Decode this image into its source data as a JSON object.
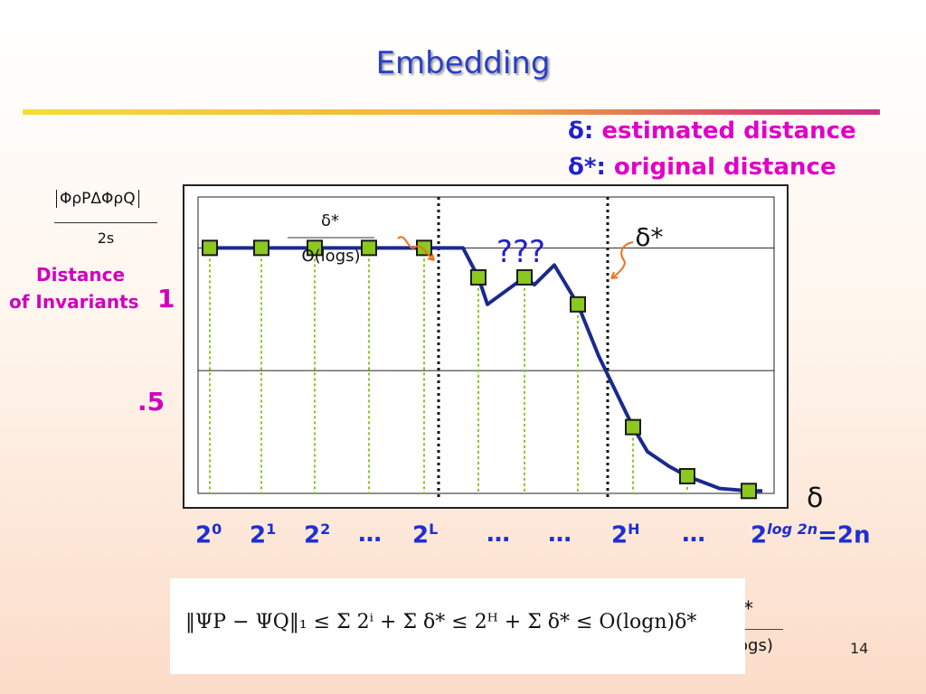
{
  "slide": {
    "title": "Embedding",
    "page_number": "14"
  },
  "legend": {
    "line1_symbol": "δ:",
    "line1_text": "estimated distance",
    "line2_symbol": "δ*:",
    "line2_text": "original distance"
  },
  "y_axis": {
    "fraction_numerator": "ΦρPΔΦρQ",
    "fraction_denominator": "2s",
    "label_line1": "Distance",
    "label_line2": "of Invariants",
    "tick_1": "1",
    "tick_half": ".5"
  },
  "x_axis": {
    "label": "δ",
    "ticks": [
      {
        "base": "2",
        "exp": "0"
      },
      {
        "base": "2",
        "exp": "1"
      },
      {
        "base": "2",
        "exp": "2"
      },
      {
        "base": "…",
        "exp": ""
      },
      {
        "base": "2",
        "exp": "L"
      },
      {
        "base": "…",
        "exp": ""
      },
      {
        "base": "…",
        "exp": ""
      },
      {
        "base": "2",
        "exp": "H"
      },
      {
        "base": "…",
        "exp": ""
      },
      {
        "base": "2",
        "exp": "log 2n",
        "suffix": "=2n"
      }
    ]
  },
  "annotations": {
    "left_fraction_num": "δ*",
    "left_fraction_den": "O(logs)",
    "question": "???",
    "right_label": "δ*"
  },
  "formula": {
    "text": "‖ΨP − ΨQ‖₁ ≤ Σ 2ⁱ + Σ δ* ≤ 2ᴴ + Σ δ* ≤ O(logn)δ*",
    "behind_star": "*",
    "behind_den": "ogs)"
  },
  "chart_data": {
    "type": "line",
    "title": "",
    "xlabel": "δ",
    "ylabel": "Distance of Invariants",
    "x_categories": [
      "2^0",
      "2^1",
      "2^2",
      "…",
      "2^L",
      "…",
      "…",
      "2^H",
      "…",
      "2^(log 2n)=2n"
    ],
    "ylim": [
      0,
      1.2
    ],
    "series": [
      {
        "markers": [
          1.0,
          1.0,
          1.0,
          1.0,
          1.0,
          0.88,
          0.88,
          0.77,
          0.27,
          0.07,
          0.01
        ],
        "line_color": "#1a2a8c",
        "marker_color": "#8bc820"
      }
    ],
    "markers_count": 11,
    "region_boundaries": [
      "2^L",
      "2^H"
    ],
    "grid": "horizontal",
    "gridlines": [
      0.5,
      1.0
    ]
  }
}
